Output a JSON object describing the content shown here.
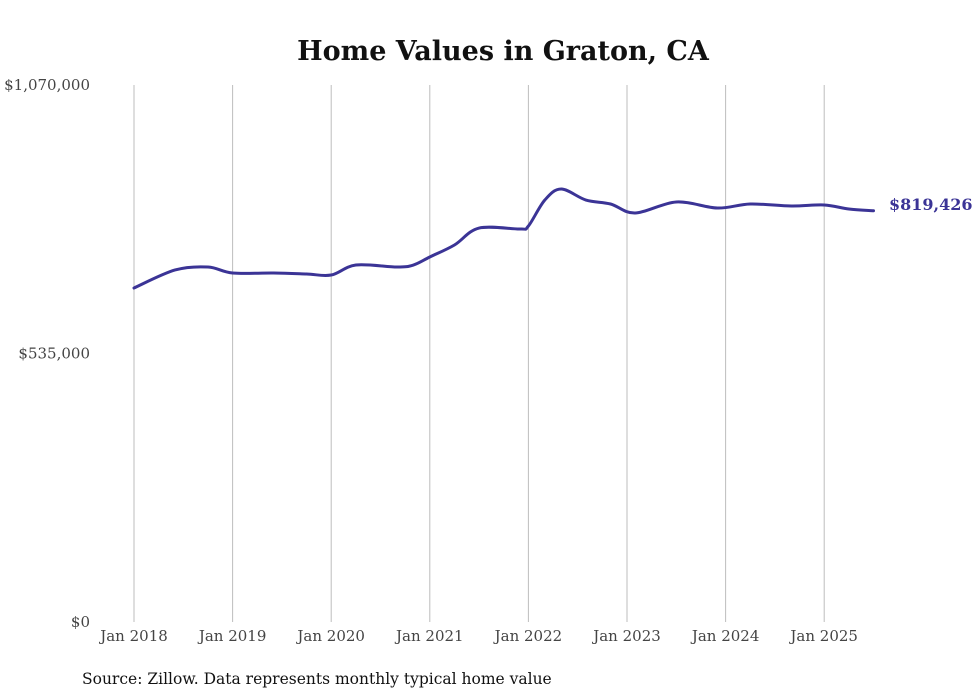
{
  "chart_data": {
    "type": "line",
    "title": "Home Values in Graton, CA",
    "xlabel": "",
    "ylabel": "",
    "ylim": [
      0,
      1070000
    ],
    "y_ticks": [
      {
        "value": 0,
        "label": "$0"
      },
      {
        "value": 535000,
        "label": "$535,000"
      },
      {
        "value": 1070000,
        "label": "$1,070,000"
      }
    ],
    "x_ticks": [
      {
        "value": 2018,
        "label": "Jan 2018"
      },
      {
        "value": 2019,
        "label": "Jan 2019"
      },
      {
        "value": 2020,
        "label": "Jan 2020"
      },
      {
        "value": 2021,
        "label": "Jan 2021"
      },
      {
        "value": 2022,
        "label": "Jan 2022"
      },
      {
        "value": 2023,
        "label": "Jan 2023"
      },
      {
        "value": 2024,
        "label": "Jan 2024"
      },
      {
        "value": 2025,
        "label": "Jan 2025"
      }
    ],
    "xlim": [
      2018,
      2025.5
    ],
    "grid": "vertical",
    "series": [
      {
        "name": "Typical home value",
        "color": "#3b3496",
        "points": [
          {
            "date": "2018-01",
            "value": 665500
          },
          {
            "date": "2018-06",
            "value": 701400
          },
          {
            "date": "2018-10",
            "value": 707300
          },
          {
            "date": "2019-01",
            "value": 695400
          },
          {
            "date": "2019-06",
            "value": 695400
          },
          {
            "date": "2019-10",
            "value": 693400
          },
          {
            "date": "2020-01",
            "value": 691400
          },
          {
            "date": "2020-04",
            "value": 711300
          },
          {
            "date": "2020-09",
            "value": 707300
          },
          {
            "date": "2020-11",
            "value": 711300
          },
          {
            "date": "2021-01",
            "value": 727300
          },
          {
            "date": "2021-04",
            "value": 751200
          },
          {
            "date": "2021-07",
            "value": 785000
          },
          {
            "date": "2021-12",
            "value": 783000
          },
          {
            "date": "2022-01",
            "value": 789000
          },
          {
            "date": "2022-03",
            "value": 840800
          },
          {
            "date": "2022-05",
            "value": 862700
          },
          {
            "date": "2022-08",
            "value": 840800
          },
          {
            "date": "2022-11",
            "value": 832900
          },
          {
            "date": "2023-02",
            "value": 814900
          },
          {
            "date": "2023-07",
            "value": 836900
          },
          {
            "date": "2023-12",
            "value": 824900
          },
          {
            "date": "2024-04",
            "value": 832900
          },
          {
            "date": "2024-09",
            "value": 828900
          },
          {
            "date": "2025-01",
            "value": 830900
          },
          {
            "date": "2025-04",
            "value": 822900
          },
          {
            "date": "2025-07",
            "value": 819426
          }
        ],
        "end_label": "$819,426"
      }
    ],
    "source": "Source: Zillow. Data represents monthly typical home value"
  }
}
